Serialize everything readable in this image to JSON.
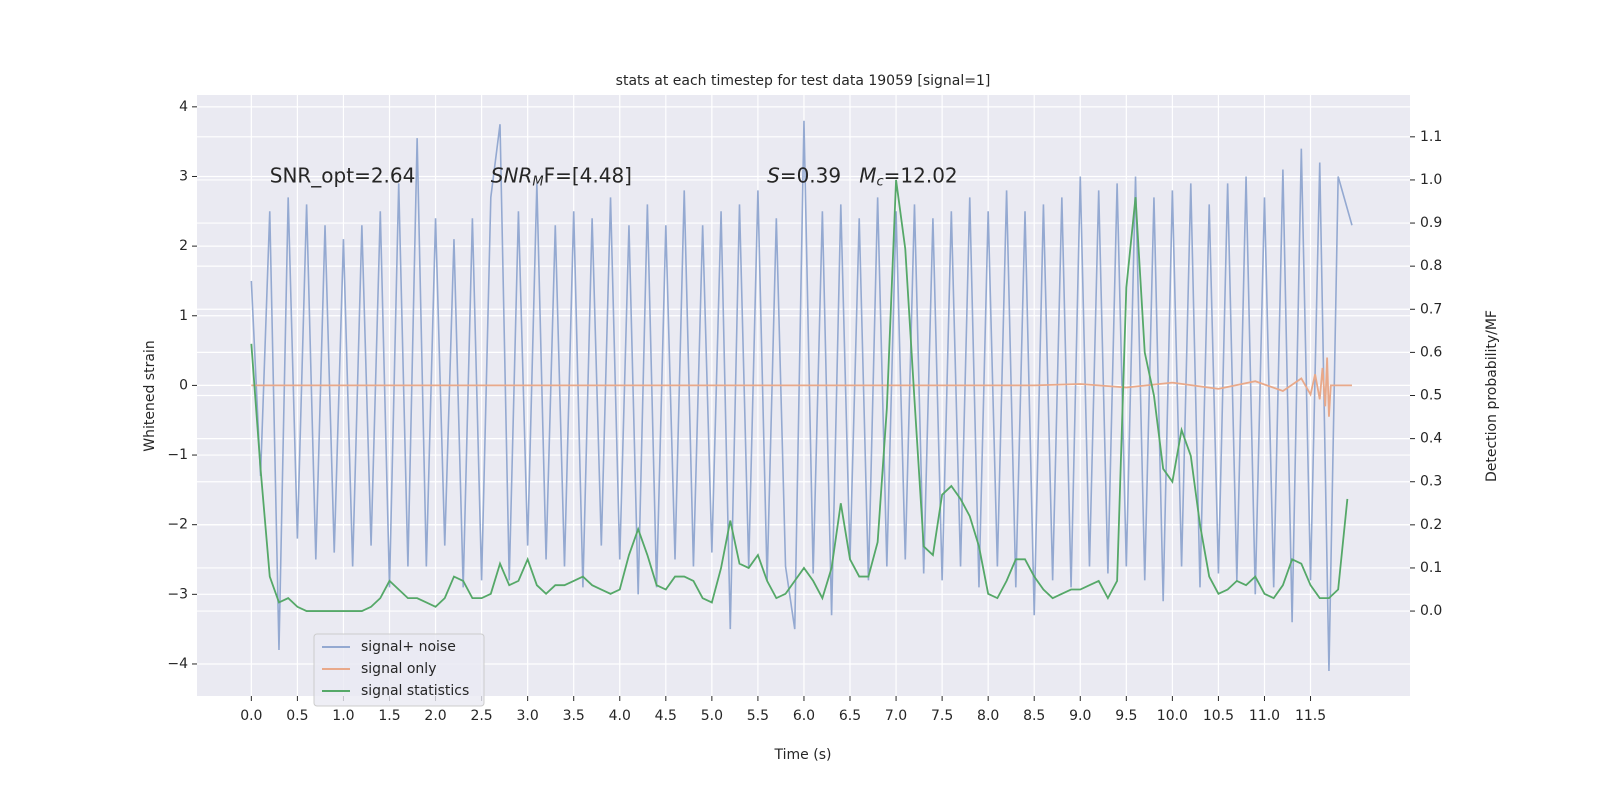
{
  "chart_data": {
    "type": "line",
    "title": "stats at each timestep for test data 19059 [signal=1]",
    "xlabel": "Time (s)",
    "ylabel": "Whitened strain",
    "y2label": "Detection probability/MF",
    "xlim": [
      -0.59,
      12.58
    ],
    "ylim": [
      -4.46,
      4.17
    ],
    "y2lim": [
      -0.197,
      1.197
    ],
    "xticks": [
      {
        "value": 0,
        "label": "0.0"
      },
      {
        "value": 0.5,
        "label": "0.5"
      },
      {
        "value": 1,
        "label": "1.0"
      },
      {
        "value": 1.5,
        "label": "1.5"
      },
      {
        "value": 2,
        "label": "2.0"
      },
      {
        "value": 2.5,
        "label": "2.5"
      },
      {
        "value": 3,
        "label": "3.0"
      },
      {
        "value": 3.5,
        "label": "3.5"
      },
      {
        "value": 4,
        "label": "4.0"
      },
      {
        "value": 4.5,
        "label": "4.5"
      },
      {
        "value": 5,
        "label": "5.0"
      },
      {
        "value": 5.5,
        "label": "5.5"
      },
      {
        "value": 6,
        "label": "6.0"
      },
      {
        "value": 6.5,
        "label": "6.5"
      },
      {
        "value": 7,
        "label": "7.0"
      },
      {
        "value": 7.5,
        "label": "7.5"
      },
      {
        "value": 8,
        "label": "8.0"
      },
      {
        "value": 8.5,
        "label": "8.5"
      },
      {
        "value": 9,
        "label": "9.0"
      },
      {
        "value": 9.5,
        "label": "9.5"
      },
      {
        "value": 10,
        "label": "10.0"
      },
      {
        "value": 10.5,
        "label": "10.5"
      },
      {
        "value": 11,
        "label": "11.0"
      },
      {
        "value": 11.5,
        "label": "11.5"
      }
    ],
    "yticks": [
      {
        "value": -4,
        "label": "−4"
      },
      {
        "value": -3,
        "label": "−3"
      },
      {
        "value": -2,
        "label": "−2"
      },
      {
        "value": -1,
        "label": "−1"
      },
      0,
      1,
      2,
      3,
      4
    ],
    "y2ticks": [
      {
        "value": 0,
        "label": "0.0"
      },
      {
        "value": 0.1,
        "label": "0.1"
      },
      {
        "value": 0.2,
        "label": "0.2"
      },
      {
        "value": 0.3,
        "label": "0.3"
      },
      {
        "value": 0.4,
        "label": "0.4"
      },
      {
        "value": 0.5,
        "label": "0.5"
      },
      {
        "value": 0.6,
        "label": "0.6"
      },
      {
        "value": 0.7,
        "label": "0.7"
      },
      {
        "value": 0.8,
        "label": "0.8"
      },
      {
        "value": 0.9,
        "label": "0.9"
      },
      {
        "value": 1,
        "label": "1.0"
      },
      {
        "value": 1.1,
        "label": "1.1"
      }
    ],
    "grid": true,
    "legend": "lower left",
    "annotations": [
      {
        "x": 0.2,
        "y": 3,
        "base": "SNR_opt=2.64"
      },
      {
        "x": 2.6,
        "y": 3,
        "base": "SNR",
        "sub": "M",
        "rest": "F=[4.48]"
      },
      {
        "x": 5.6,
        "y": 3,
        "base": "S",
        "rest": "=0.39"
      },
      {
        "x": 6.6,
        "y": 3,
        "base": "M",
        "sub": "c",
        "rest": "=12.02"
      }
    ],
    "series": [
      {
        "name": "signal+ noise",
        "color": "#94a9d1",
        "x": [
          0,
          0.1,
          0.2,
          0.3,
          0.4,
          0.5,
          0.6,
          0.7,
          0.8,
          0.9,
          1,
          1.1,
          1.2,
          1.3,
          1.4,
          1.5,
          1.6,
          1.7,
          1.8,
          1.9,
          2,
          2.1,
          2.2,
          2.3,
          2.4,
          2.5,
          2.6,
          2.7,
          2.8,
          2.9,
          3,
          3.1,
          3.2,
          3.3,
          3.4,
          3.5,
          3.6,
          3.7,
          3.8,
          3.9,
          4,
          4.1,
          4.2,
          4.3,
          4.4,
          4.5,
          4.6,
          4.7,
          4.8,
          4.9,
          5,
          5.1,
          5.2,
          5.3,
          5.4,
          5.5,
          5.6,
          5.7,
          5.8,
          5.9,
          6,
          6.1,
          6.2,
          6.3,
          6.4,
          6.5,
          6.6,
          6.7,
          6.8,
          6.9,
          7,
          7.1,
          7.2,
          7.3,
          7.4,
          7.5,
          7.6,
          7.7,
          7.8,
          7.9,
          8,
          8.1,
          8.2,
          8.3,
          8.4,
          8.5,
          8.6,
          8.7,
          8.8,
          8.9,
          9,
          9.1,
          9.2,
          9.3,
          9.4,
          9.5,
          9.6,
          9.7,
          9.8,
          9.9,
          10,
          10.1,
          10.2,
          10.3,
          10.4,
          10.5,
          10.6,
          10.7,
          10.8,
          10.9,
          11,
          11.1,
          11.2,
          11.3,
          11.4,
          11.5,
          11.6,
          11.7,
          11.8,
          11.95
        ],
        "values": [
          1.5,
          -1.3,
          2.5,
          -3.8,
          2.7,
          -2.2,
          2.6,
          -2.5,
          2.3,
          -2.4,
          2.1,
          -2.6,
          2.3,
          -2.3,
          2.5,
          -2.9,
          2.9,
          -2.6,
          3.55,
          -2.6,
          2.4,
          -2.3,
          2.1,
          -2.9,
          2.4,
          -2.8,
          2.7,
          3.75,
          -2.8,
          2.5,
          -2.3,
          2.9,
          -2.5,
          2.3,
          -2.6,
          2.5,
          -2.9,
          2.4,
          -2.3,
          2.7,
          -2.5,
          2.3,
          -3.0,
          2.6,
          -2.9,
          2.3,
          -2.5,
          2.8,
          -2.6,
          2.3,
          -2.4,
          2.5,
          -3.5,
          2.6,
          -2.6,
          2.8,
          -2.8,
          2.4,
          -2.6,
          -3.5,
          3.8,
          -2.7,
          2.5,
          -3.3,
          2.6,
          -2.5,
          2.4,
          -2.8,
          2.7,
          -2.6,
          2.5,
          -2.5,
          2.6,
          -2.7,
          2.4,
          -2.8,
          2.5,
          -2.6,
          2.7,
          -2.9,
          2.5,
          -2.6,
          2.8,
          -2.9,
          2.5,
          -3.3,
          2.6,
          -2.8,
          2.7,
          -2.9,
          3.0,
          -2.6,
          2.8,
          -2.7,
          2.9,
          -2.6,
          3.0,
          -2.8,
          2.7,
          -3.1,
          2.8,
          -2.6,
          2.9,
          -2.9,
          2.6,
          -2.7,
          2.9,
          -2.8,
          3.0,
          -3.0,
          2.7,
          -2.9,
          3.1,
          -3.4,
          3.4,
          -2.8,
          3.2,
          -4.1,
          3.0,
          2.3
        ]
      },
      {
        "name": "signal only",
        "color": "#e9a98a",
        "x": [
          0,
          8.5,
          9.0,
          9.5,
          10.0,
          10.5,
          10.9,
          11.2,
          11.4,
          11.5,
          11.55,
          11.6,
          11.63,
          11.66,
          11.68,
          11.7,
          11.72,
          11.8,
          11.95
        ],
        "values": [
          0,
          0,
          0.02,
          -0.03,
          0.04,
          -0.05,
          0.06,
          -0.08,
          0.1,
          -0.13,
          0.16,
          -0.2,
          0.25,
          -0.3,
          0.4,
          -0.45,
          0,
          0,
          0
        ]
      },
      {
        "name": "signal statistics",
        "color": "#55a868",
        "axis": "y2",
        "x": [
          0,
          0.1,
          0.2,
          0.3,
          0.4,
          0.5,
          0.6,
          0.7,
          0.8,
          0.9,
          1,
          1.1,
          1.2,
          1.3,
          1.4,
          1.5,
          1.6,
          1.7,
          1.8,
          1.9,
          2,
          2.1,
          2.2,
          2.3,
          2.4,
          2.5,
          2.6,
          2.7,
          2.8,
          2.9,
          3,
          3.1,
          3.2,
          3.3,
          3.4,
          3.5,
          3.6,
          3.7,
          3.8,
          3.9,
          4,
          4.1,
          4.2,
          4.3,
          4.4,
          4.5,
          4.6,
          4.7,
          4.8,
          4.9,
          5,
          5.1,
          5.2,
          5.3,
          5.4,
          5.5,
          5.6,
          5.7,
          5.8,
          5.9,
          6,
          6.1,
          6.2,
          6.3,
          6.4,
          6.5,
          6.6,
          6.7,
          6.8,
          6.9,
          7,
          7.1,
          7.2,
          7.3,
          7.4,
          7.5,
          7.6,
          7.7,
          7.8,
          7.9,
          8,
          8.1,
          8.2,
          8.3,
          8.4,
          8.5,
          8.6,
          8.7,
          8.8,
          8.9,
          9,
          9.1,
          9.2,
          9.3,
          9.4,
          9.5,
          9.6,
          9.7,
          9.8,
          9.9,
          10,
          10.1,
          10.2,
          10.3,
          10.4,
          10.5,
          10.6,
          10.7,
          10.8,
          10.9,
          11,
          11.1,
          11.2,
          11.3,
          11.4,
          11.5,
          11.6,
          11.7,
          11.8,
          11.9
        ],
        "values": [
          0.62,
          0.33,
          0.08,
          0.02,
          0.03,
          0.01,
          0,
          0,
          0,
          0,
          0,
          0,
          0,
          0.01,
          0.03,
          0.07,
          0.05,
          0.03,
          0.03,
          0.02,
          0.01,
          0.03,
          0.08,
          0.07,
          0.03,
          0.03,
          0.04,
          0.11,
          0.06,
          0.07,
          0.12,
          0.06,
          0.04,
          0.06,
          0.06,
          0.07,
          0.08,
          0.06,
          0.05,
          0.04,
          0.05,
          0.13,
          0.19,
          0.13,
          0.06,
          0.05,
          0.08,
          0.08,
          0.07,
          0.03,
          0.02,
          0.1,
          0.21,
          0.11,
          0.1,
          0.13,
          0.07,
          0.03,
          0.04,
          0.07,
          0.1,
          0.07,
          0.03,
          0.1,
          0.25,
          0.12,
          0.08,
          0.08,
          0.16,
          0.47,
          1.0,
          0.84,
          0.49,
          0.15,
          0.13,
          0.27,
          0.29,
          0.26,
          0.22,
          0.15,
          0.04,
          0.03,
          0.07,
          0.12,
          0.12,
          0.08,
          0.05,
          0.03,
          0.04,
          0.05,
          0.05,
          0.06,
          0.07,
          0.03,
          0.07,
          0.75,
          0.96,
          0.6,
          0.5,
          0.33,
          0.3,
          0.42,
          0.36,
          0.2,
          0.08,
          0.04,
          0.05,
          0.07,
          0.06,
          0.08,
          0.04,
          0.03,
          0.06,
          0.12,
          0.11,
          0.06,
          0.03,
          0.03,
          0.05,
          0.26
        ]
      }
    ]
  }
}
